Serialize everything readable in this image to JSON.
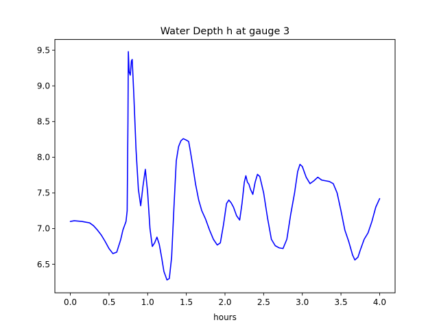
{
  "chart_data": {
    "type": "line",
    "title": "Water Depth h at gauge 3",
    "xlabel": "hours",
    "ylabel": "",
    "xlim": [
      -0.2,
      4.2
    ],
    "ylim": [
      6.1,
      9.65
    ],
    "xticks": [
      0.0,
      0.5,
      1.0,
      1.5,
      2.0,
      2.5,
      3.0,
      3.5,
      4.0
    ],
    "xtick_labels": [
      "0.0",
      "0.5",
      "1.0",
      "1.5",
      "2.0",
      "2.5",
      "3.0",
      "3.5",
      "4.0"
    ],
    "yticks": [
      6.5,
      7.0,
      7.5,
      8.0,
      8.5,
      9.0,
      9.5
    ],
    "ytick_labels": [
      "6.5",
      "7.0",
      "7.5",
      "8.0",
      "8.5",
      "9.0",
      "9.5"
    ],
    "grid": false,
    "series": [
      {
        "color": "#0000ff",
        "x": [
          0.0,
          0.05,
          0.15,
          0.25,
          0.3,
          0.35,
          0.4,
          0.45,
          0.5,
          0.55,
          0.6,
          0.65,
          0.68,
          0.72,
          0.735,
          0.745,
          0.75,
          0.76,
          0.775,
          0.79,
          0.8,
          0.82,
          0.85,
          0.88,
          0.91,
          0.94,
          0.97,
          1.0,
          1.03,
          1.06,
          1.09,
          1.12,
          1.15,
          1.18,
          1.21,
          1.25,
          1.28,
          1.31,
          1.34,
          1.37,
          1.4,
          1.43,
          1.46,
          1.5,
          1.53,
          1.55,
          1.58,
          1.62,
          1.66,
          1.7,
          1.75,
          1.8,
          1.85,
          1.9,
          1.94,
          1.98,
          2.02,
          2.05,
          2.08,
          2.11,
          2.15,
          2.19,
          2.22,
          2.25,
          2.27,
          2.29,
          2.31,
          2.33,
          2.36,
          2.39,
          2.42,
          2.45,
          2.5,
          2.55,
          2.6,
          2.65,
          2.7,
          2.75,
          2.8,
          2.85,
          2.9,
          2.94,
          2.97,
          3.0,
          3.05,
          3.1,
          3.15,
          3.2,
          3.25,
          3.3,
          3.35,
          3.4,
          3.45,
          3.5,
          3.55,
          3.6,
          3.65,
          3.68,
          3.72,
          3.75,
          3.8,
          3.85,
          3.9,
          3.95,
          4.0
        ],
        "y": [
          7.1,
          7.11,
          7.1,
          7.08,
          7.04,
          6.98,
          6.91,
          6.82,
          6.72,
          6.65,
          6.67,
          6.84,
          6.98,
          7.1,
          7.25,
          8.5,
          9.48,
          9.2,
          9.15,
          9.35,
          9.37,
          8.9,
          8.1,
          7.55,
          7.32,
          7.6,
          7.83,
          7.5,
          7.0,
          6.75,
          6.8,
          6.88,
          6.78,
          6.6,
          6.4,
          6.28,
          6.3,
          6.6,
          7.3,
          7.95,
          8.15,
          8.23,
          8.26,
          8.24,
          8.22,
          8.1,
          7.9,
          7.62,
          7.4,
          7.25,
          7.13,
          6.98,
          6.85,
          6.77,
          6.8,
          7.05,
          7.35,
          7.4,
          7.36,
          7.3,
          7.18,
          7.12,
          7.35,
          7.65,
          7.74,
          7.65,
          7.62,
          7.55,
          7.48,
          7.65,
          7.76,
          7.73,
          7.5,
          7.15,
          6.85,
          6.76,
          6.73,
          6.72,
          6.85,
          7.2,
          7.5,
          7.8,
          7.9,
          7.87,
          7.72,
          7.63,
          7.67,
          7.72,
          7.68,
          7.67,
          7.66,
          7.63,
          7.5,
          7.25,
          6.98,
          6.82,
          6.63,
          6.56,
          6.6,
          6.7,
          6.85,
          6.94,
          7.1,
          7.3,
          7.42
        ]
      }
    ]
  }
}
